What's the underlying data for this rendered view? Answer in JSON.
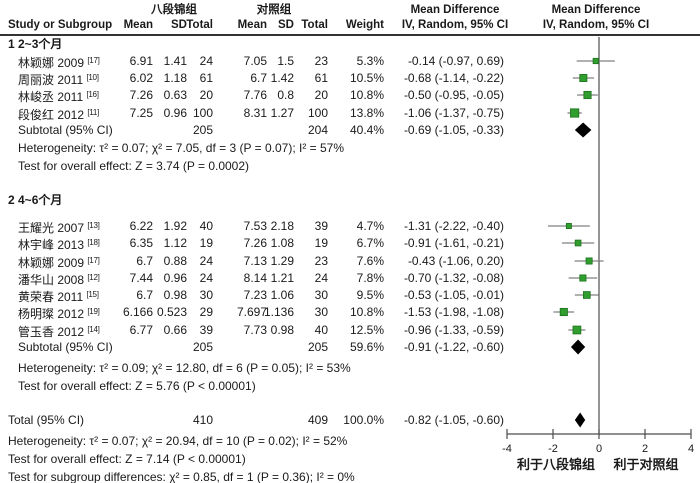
{
  "header": {
    "group1": "八段锦组",
    "group2": "对照组",
    "col_study": "Study or Subgroup",
    "col_mean": "Mean",
    "col_sd": "SD",
    "col_total": "Total",
    "col_weight": "Weight",
    "md_title": "Mean Difference",
    "md_sub": "IV, Random, 95% CI"
  },
  "chart_data": {
    "type": "forest",
    "effect_measure": "Mean Difference, IV, Random, 95% CI",
    "axis": {
      "ticks": [
        -4,
        -2,
        0,
        2,
        4
      ],
      "min": -4,
      "max": 4
    },
    "favors_left": "利于八段锦组",
    "favors_right": "利于对照组",
    "colors": {
      "marker": "#2f9e2f",
      "marker_border": "#1d711d",
      "ci_line": "#808080",
      "diamond": "#000000",
      "axis": "#4d4d4d"
    },
    "sections": [
      {
        "label": "1 2~3个月",
        "studies": [
          {
            "name": "林颖娜 2009",
            "ref": "[17]",
            "mean1": "6.91",
            "sd1": "1.41",
            "total1": "24",
            "mean2": "7.05",
            "sd2": "1.5",
            "total2": "23",
            "weight": "5.3%",
            "ci": "-0.14 (-0.97, 0.69)",
            "est": -0.14,
            "lo": -0.97,
            "hi": 0.69,
            "w": 5.3
          },
          {
            "name": "周丽波 2011",
            "ref": "[10]",
            "mean1": "6.02",
            "sd1": "1.18",
            "total1": "61",
            "mean2": "6.7",
            "sd2": "1.42",
            "total2": "61",
            "weight": "10.5%",
            "ci": "-0.68 (-1.14, -0.22)",
            "est": -0.68,
            "lo": -1.14,
            "hi": -0.22,
            "w": 10.5
          },
          {
            "name": "林峻丞 2011",
            "ref": "[16]",
            "mean1": "7.26",
            "sd1": "0.63",
            "total1": "20",
            "mean2": "7.76",
            "sd2": "0.8",
            "total2": "20",
            "weight": "10.8%",
            "ci": "-0.50 (-0.95, -0.05)",
            "est": -0.5,
            "lo": -0.95,
            "hi": -0.05,
            "w": 10.8
          },
          {
            "name": "段俊红 2012",
            "ref": "[11]",
            "mean1": "7.25",
            "sd1": "0.96",
            "total1": "100",
            "mean2": "8.31",
            "sd2": "1.27",
            "total2": "100",
            "weight": "13.8%",
            "ci": "-1.06 (-1.37, -0.75)",
            "est": -1.06,
            "lo": -1.37,
            "hi": -0.75,
            "w": 13.8
          }
        ],
        "subtotal": {
          "label": "Subtotal (95% CI)",
          "total1": "205",
          "total2": "204",
          "weight": "40.4%",
          "ci": "-0.69 (-1.05, -0.33)",
          "est": -0.69,
          "lo": -1.05,
          "hi": -0.33
        },
        "heterogeneity": "Heterogeneity: τ² = 0.07; χ² = 7.05, df = 3 (P = 0.07); I² = 57%",
        "overall_test": "Test for overall effect: Z = 3.74 (P = 0.0002)"
      },
      {
        "label": "2 4~6个月",
        "studies": [
          {
            "name": "王耀光 2007",
            "ref": "[13]",
            "mean1": "6.22",
            "sd1": "1.92",
            "total1": "40",
            "mean2": "7.53",
            "sd2": "2.18",
            "total2": "39",
            "weight": "4.7%",
            "ci": "-1.31 (-2.22, -0.40)",
            "est": -1.31,
            "lo": -2.22,
            "hi": -0.4,
            "w": 4.7
          },
          {
            "name": "林宇峰 2013",
            "ref": "[18]",
            "mean1": "6.35",
            "sd1": "1.12",
            "total1": "19",
            "mean2": "7.26",
            "sd2": "1.08",
            "total2": "19",
            "weight": "6.7%",
            "ci": "-0.91 (-1.61, -0.21)",
            "est": -0.91,
            "lo": -1.61,
            "hi": -0.21,
            "w": 6.7
          },
          {
            "name": "林颖娜 2009",
            "ref": "[17]",
            "mean1": "6.7",
            "sd1": "0.88",
            "total1": "24",
            "mean2": "7.13",
            "sd2": "1.29",
            "total2": "23",
            "weight": "7.6%",
            "ci": "-0.43 (-1.06, 0.20)",
            "est": -0.43,
            "lo": -1.06,
            "hi": 0.2,
            "w": 7.6
          },
          {
            "name": "潘华山 2008",
            "ref": "[12]",
            "mean1": "7.44",
            "sd1": "0.96",
            "total1": "24",
            "mean2": "8.14",
            "sd2": "1.21",
            "total2": "24",
            "weight": "7.8%",
            "ci": "-0.70 (-1.32, -0.08)",
            "est": -0.7,
            "lo": -1.32,
            "hi": -0.08,
            "w": 7.8
          },
          {
            "name": "黄荣春 2011",
            "ref": "[15]",
            "mean1": "6.7",
            "sd1": "0.98",
            "total1": "30",
            "mean2": "7.23",
            "sd2": "1.06",
            "total2": "30",
            "weight": "9.5%",
            "ci": "-0.53 (-1.05, -0.01)",
            "est": -0.53,
            "lo": -1.05,
            "hi": -0.01,
            "w": 9.5
          },
          {
            "name": "杨明璨 2012",
            "ref": "[19]",
            "mean1": "6.166",
            "sd1": "0.523",
            "total1": "29",
            "mean2": "7.697",
            "sd2": "1.136",
            "total2": "30",
            "weight": "10.8%",
            "ci": "-1.53 (-1.98, -1.08)",
            "est": -1.53,
            "lo": -1.98,
            "hi": -1.08,
            "w": 10.8
          },
          {
            "name": "管玉香 2012",
            "ref": "[14]",
            "mean1": "6.77",
            "sd1": "0.66",
            "total1": "39",
            "mean2": "7.73",
            "sd2": "0.98",
            "total2": "40",
            "weight": "12.5%",
            "ci": "-0.96 (-1.33, -0.59)",
            "est": -0.96,
            "lo": -1.33,
            "hi": -0.59,
            "w": 12.5
          }
        ],
        "subtotal": {
          "label": "Subtotal (95% CI)",
          "total1": "205",
          "total2": "205",
          "weight": "59.6%",
          "ci": "-0.91 (-1.22, -0.60)",
          "est": -0.91,
          "lo": -1.22,
          "hi": -0.6
        },
        "heterogeneity": "Heterogeneity: τ² = 0.09; χ² = 12.80, df = 6 (P = 0.05); I² = 53%",
        "overall_test": "Test for overall effect: Z = 5.76 (P < 0.00001)"
      }
    ],
    "total": {
      "label": "Total (95% CI)",
      "total1": "410",
      "total2": "409",
      "weight": "100.0%",
      "ci": "-0.82 (-1.05, -0.60)",
      "est": -0.82,
      "lo": -1.05,
      "hi": -0.6
    },
    "total_heterogeneity": "Heterogeneity: τ² = 0.07; χ² = 20.94, df = 10 (P = 0.02); I² = 52%",
    "total_overall_test": "Test for overall effect: Z = 7.14 (P < 0.00001)",
    "subgroup_test": "Test for subgroup differences: χ² = 0.85, df = 1 (P = 0.36); I² = 0%"
  }
}
